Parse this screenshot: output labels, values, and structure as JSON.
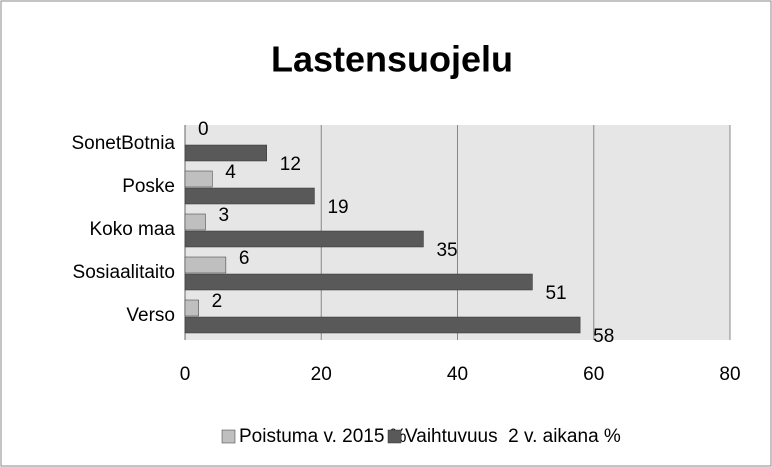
{
  "chart_data": {
    "type": "hbar",
    "title": "Lastensuojelu",
    "categories": [
      "SonetBotnia",
      "Poske",
      "Koko maa",
      "Sosiaalitaito",
      "Verso"
    ],
    "series": [
      {
        "name": "Poistuma v. 2015 %",
        "color": "#bfbfbf",
        "values": [
          0,
          4,
          3,
          6,
          2
        ]
      },
      {
        "name": "Vaihtuvuus  2 v. aikana %",
        "color": "#595959",
        "values": [
          12,
          19,
          35,
          51,
          58
        ]
      }
    ],
    "xlim": [
      0,
      80
    ],
    "xticks": [
      0,
      20,
      40,
      60,
      80
    ],
    "grid": true,
    "legend": "bottom"
  }
}
